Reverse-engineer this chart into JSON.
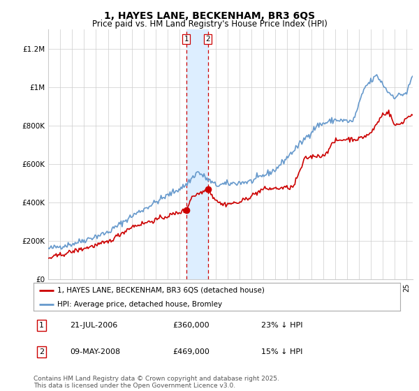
{
  "title": "1, HAYES LANE, BECKENHAM, BR3 6QS",
  "subtitle": "Price paid vs. HM Land Registry's House Price Index (HPI)",
  "title_fontsize": 10,
  "subtitle_fontsize": 8.5,
  "legend_line1": "1, HAYES LANE, BECKENHAM, BR3 6QS (detached house)",
  "legend_line2": "HPI: Average price, detached house, Bromley",
  "sale1_label": "1",
  "sale1_date": "21-JUL-2006",
  "sale1_price": "£360,000",
  "sale1_hpi": "23% ↓ HPI",
  "sale1_year": 2006.55,
  "sale1_value": 360000,
  "sale2_label": "2",
  "sale2_date": "09-MAY-2008",
  "sale2_price": "£469,000",
  "sale2_hpi": "15% ↓ HPI",
  "sale2_year": 2008.36,
  "sale2_value": 469000,
  "red_color": "#cc0000",
  "blue_color": "#6699cc",
  "shade_color": "#ddeeff",
  "grid_color": "#cccccc",
  "background_color": "#ffffff",
  "footer": "Contains HM Land Registry data © Crown copyright and database right 2025.\nThis data is licensed under the Open Government Licence v3.0.",
  "ylim": [
    0,
    1300000
  ],
  "yticks": [
    0,
    200000,
    400000,
    600000,
    800000,
    1000000,
    1200000
  ],
  "ytick_labels": [
    "£0",
    "£200K",
    "£400K",
    "£600K",
    "£800K",
    "£1M",
    "£1.2M"
  ],
  "xlim_start": 1995,
  "xlim_end": 2025.5
}
